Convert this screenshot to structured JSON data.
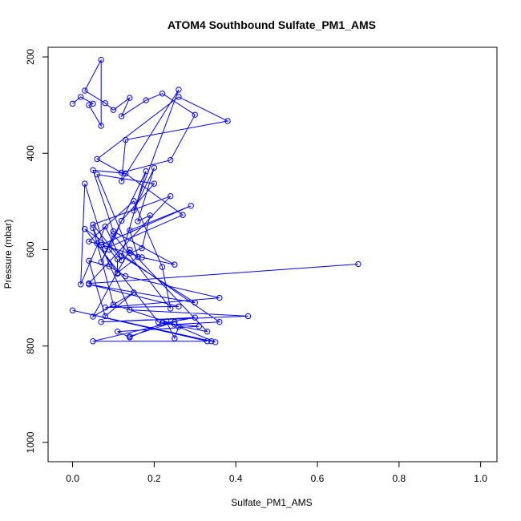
{
  "chart_data": {
    "type": "line",
    "title": "ATOM4 Southbound Sulfate_PM1_AMS",
    "xlabel": "Sulfate_PM1_AMS",
    "ylabel": "Pressure (mbar)",
    "xlim": [
      -0.06,
      1.04
    ],
    "ylim": [
      1040,
      180
    ],
    "y_inverted": true,
    "x_ticks": [
      0.0,
      0.2,
      0.4,
      0.6,
      0.8,
      1.0
    ],
    "x_tick_labels": [
      "0.0",
      "0.2",
      "0.4",
      "0.6",
      "0.8",
      "1.0"
    ],
    "y_ticks": [
      200,
      400,
      600,
      800,
      1000
    ],
    "y_tick_labels": [
      "200",
      "400",
      "600",
      "800",
      "1000"
    ],
    "grid": false,
    "legend": "none",
    "series_color": "#0000ff",
    "marker": "open-circle",
    "series": [
      {
        "x": [
          0.7,
          0.04,
          0.24,
          0.05,
          0.12,
          0.08,
          0.02,
          0.03,
          0.08,
          0.27,
          0.13,
          0.05,
          0.1,
          0.25,
          0.17,
          0.06,
          0.11,
          0.16,
          0.14,
          0.29,
          0.07,
          0.04,
          0.15,
          0.22,
          0.24,
          0.1,
          0.07,
          0.18,
          0.12,
          0.3,
          0.04,
          0.26,
          0.08,
          0.36,
          0.13,
          0.09,
          0.04,
          0.08,
          0.15,
          0.05,
          0.14,
          0.33,
          0.21,
          0.03,
          0.36,
          0.25,
          0.1,
          0.05,
          0.14,
          0.43,
          0.07,
          0.3,
          0.22,
          0.31,
          0.11,
          0.14,
          0.23,
          0.25,
          0.26,
          0.35,
          0.34,
          0.0,
          0.33,
          0.05,
          0.25,
          0.14
        ],
        "y": [
          630,
          670,
          489,
          548,
          622,
          552,
          672,
          463,
          598,
          528,
          442,
          435,
          562,
          631,
          616,
          587,
          648,
          615,
          560,
          509,
          590,
          583,
          499,
          636,
          722,
          568,
          626,
          437,
          613,
          710,
          672,
          718,
          720,
          700,
          655,
          635,
          623,
          738,
          689,
          739,
          600,
          770,
          750,
          557,
          750,
          755,
          714,
          555,
          725,
          738,
          750,
          741,
          753,
          759,
          770,
          782,
          749,
          784,
          760,
          792,
          790,
          726,
          790,
          790,
          750,
          780
        ]
      },
      {
        "x": [
          0.0,
          0.02,
          0.05,
          0.04,
          0.07,
          0.07,
          0.03,
          0.08,
          0.1,
          0.14,
          0.12,
          0.18,
          0.22,
          0.3,
          0.24,
          0.12,
          0.06,
          0.26,
          0.38,
          0.13,
          0.12,
          0.26,
          0.15,
          0.2,
          0.16,
          0.19,
          0.17,
          0.14,
          0.06,
          0.2,
          0.12,
          0.09,
          0.11,
          0.11
        ],
        "y": [
          297,
          283,
          297,
          300,
          343,
          206,
          270,
          296,
          310,
          285,
          323,
          290,
          276,
          320,
          414,
          440,
          412,
          283,
          333,
          372,
          458,
          268,
          519,
          430,
          541,
          529,
          597,
          607,
          444,
          463,
          540,
          600,
          620,
          650
        ]
      }
    ]
  }
}
